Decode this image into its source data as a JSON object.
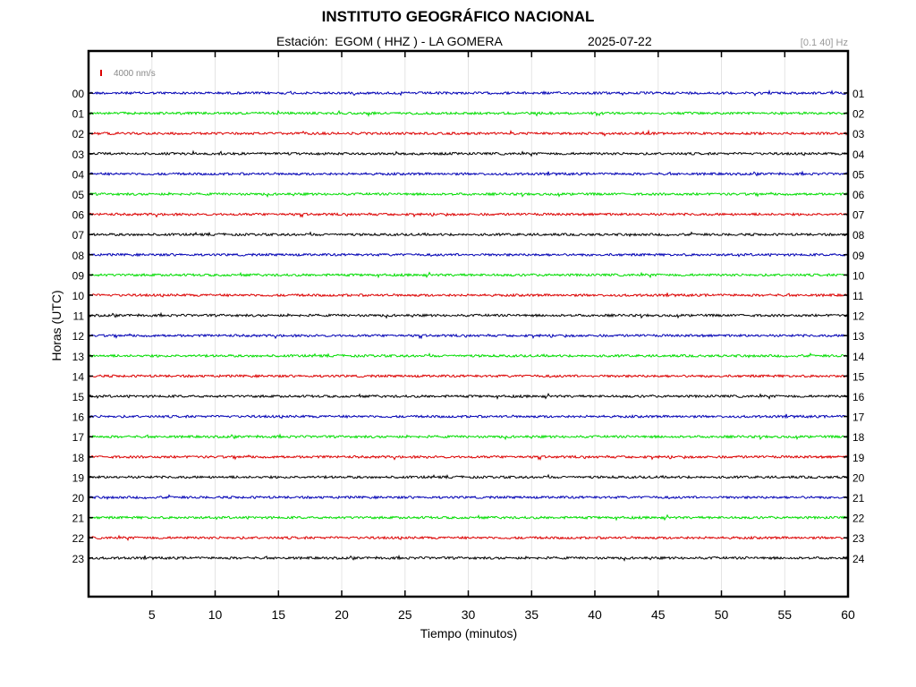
{
  "header": {
    "title": "INSTITUTO GEOGRÁFICO NACIONAL",
    "station": "Estación:  EGOM ( HHZ ) - LA GOMERA",
    "date": "2025-07-22",
    "band": "[0.1 40] Hz"
  },
  "chart_data": {
    "type": "line",
    "title": "INSTITUTO GEOGRÁFICO NACIONAL",
    "xlabel": "Tiempo (minutos)",
    "ylabel": "Horas (UTC)",
    "xlim": [
      0,
      60
    ],
    "x_ticks": [
      5,
      10,
      15,
      20,
      25,
      30,
      35,
      40,
      45,
      50,
      55,
      60
    ],
    "grid": "vertical",
    "scale_label": "4000 nm/s",
    "left_hours": [
      "00",
      "01",
      "02",
      "03",
      "04",
      "05",
      "06",
      "07",
      "08",
      "09",
      "10",
      "11",
      "12",
      "13",
      "14",
      "15",
      "16",
      "17",
      "18",
      "19",
      "20",
      "21",
      "22",
      "23"
    ],
    "right_hours": [
      "01",
      "02",
      "03",
      "04",
      "05",
      "06",
      "07",
      "08",
      "09",
      "10",
      "11",
      "12",
      "13",
      "14",
      "15",
      "16",
      "17",
      "18",
      "19",
      "20",
      "21",
      "22",
      "23",
      "24"
    ],
    "trace_colors": [
      "#0000b4",
      "#00dc00",
      "#dc0000",
      "#000000"
    ]
  }
}
